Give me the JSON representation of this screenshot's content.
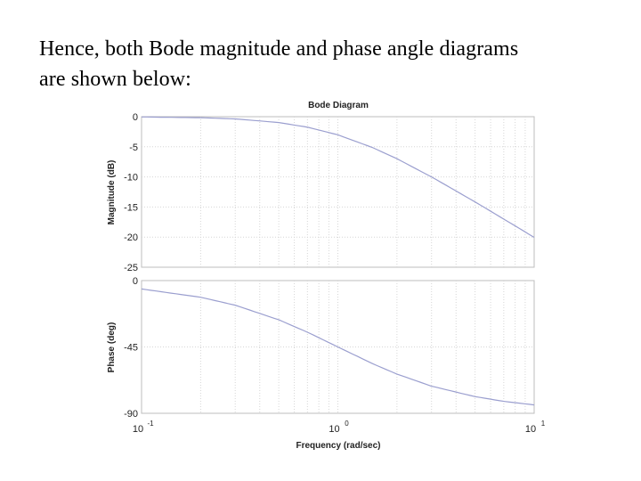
{
  "caption": {
    "line1": "Hence, both Bode magnitude and phase angle diagrams",
    "line2": "are shown below:"
  },
  "chart_data": [
    {
      "type": "line",
      "panel": "magnitude",
      "title": "Bode Diagram",
      "xlabel": "",
      "ylabel": "Magnitude (dB)",
      "xscale": "log",
      "xlim": [
        0.1,
        10
      ],
      "ylim": [
        -25,
        0
      ],
      "yticks": [
        0,
        -5,
        -10,
        -15,
        -20,
        -25
      ],
      "ytick_labels": [
        "0",
        "-5",
        "-10",
        "-15",
        "-20",
        "-25"
      ],
      "grid": true,
      "line_color": "#9b9fcf",
      "x": [
        0.1,
        0.2,
        0.3,
        0.5,
        0.7,
        1,
        1.5,
        2,
        3,
        5,
        7,
        10
      ],
      "y": [
        -0.04,
        -0.17,
        -0.37,
        -0.97,
        -1.74,
        -3.01,
        -5.12,
        -6.99,
        -10.0,
        -14.15,
        -17.0,
        -20.04
      ]
    },
    {
      "type": "line",
      "panel": "phase",
      "xlabel": "Frequency (rad/sec)",
      "ylabel": "Phase (deg)",
      "xscale": "log",
      "xlim": [
        0.1,
        10
      ],
      "ylim": [
        -90,
        0
      ],
      "yticks": [
        0,
        -45,
        -90
      ],
      "ytick_labels": [
        "0",
        "-45",
        "-90"
      ],
      "xtick_labels": [
        {
          "base": "10",
          "exp": "-1"
        },
        {
          "base": "10",
          "exp": "0"
        },
        {
          "base": "10",
          "exp": "1"
        }
      ],
      "grid": true,
      "line_color": "#9b9fcf",
      "x": [
        0.1,
        0.2,
        0.3,
        0.5,
        0.7,
        1,
        1.5,
        2,
        3,
        5,
        7,
        10
      ],
      "y": [
        -5.7,
        -11.3,
        -16.7,
        -26.6,
        -35.0,
        -45.0,
        -56.3,
        -63.4,
        -71.6,
        -78.7,
        -81.9,
        -84.3
      ]
    }
  ]
}
